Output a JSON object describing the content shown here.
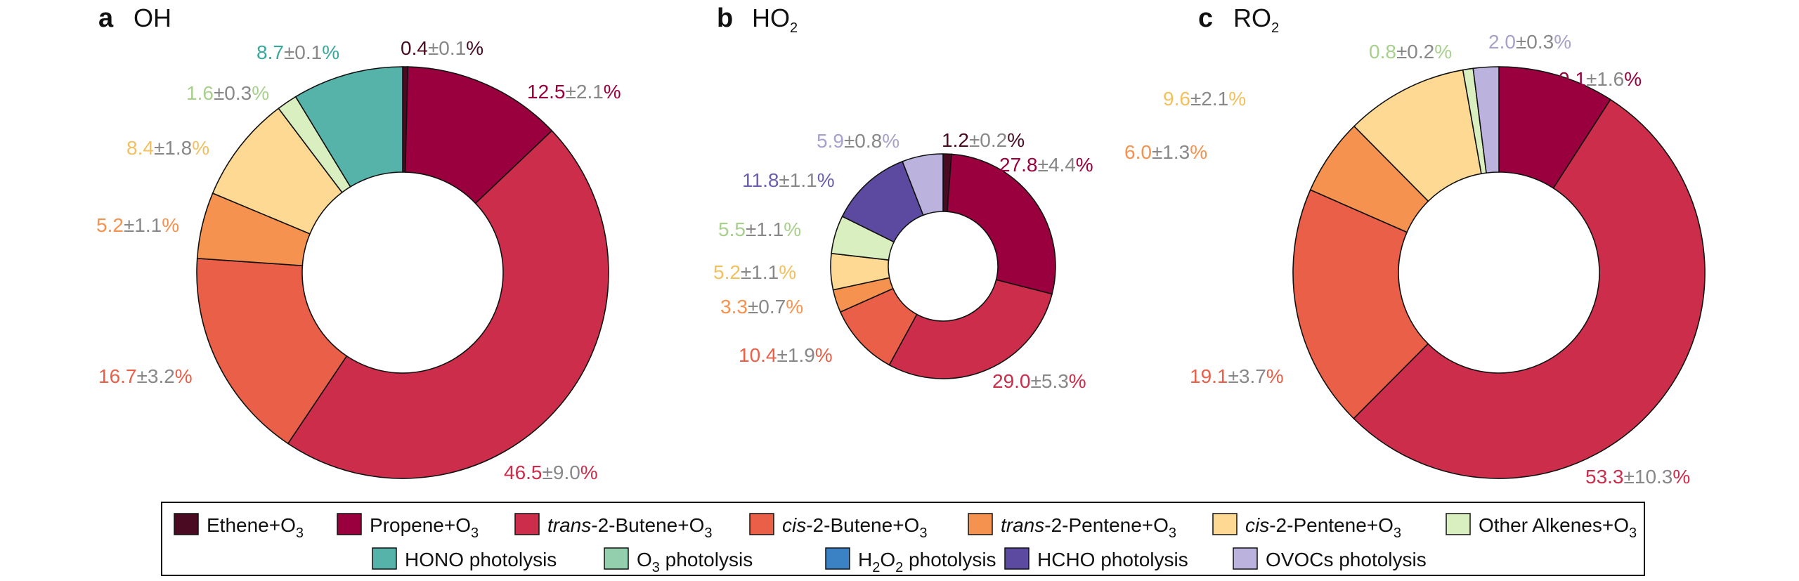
{
  "legend": [
    {
      "key": "ethene",
      "parts": [
        [
          "Ethene+O",
          "n"
        ],
        [
          "3",
          "sub"
        ]
      ],
      "color": "#4a0a22"
    },
    {
      "key": "propene",
      "parts": [
        [
          "Propene+O",
          "n"
        ],
        [
          "3",
          "sub"
        ]
      ],
      "color": "#99003d"
    },
    {
      "key": "trans2butene",
      "parts": [
        [
          "trans",
          "i"
        ],
        [
          "-2-Butene+O",
          "n"
        ],
        [
          "3",
          "sub"
        ]
      ],
      "color": "#cc2d4a"
    },
    {
      "key": "cis2butene",
      "parts": [
        [
          "cis",
          "i"
        ],
        [
          "-2-Butene+O",
          "n"
        ],
        [
          "3",
          "sub"
        ]
      ],
      "color": "#e95f48"
    },
    {
      "key": "trans2pentene",
      "parts": [
        [
          "trans",
          "i"
        ],
        [
          "-2-Pentene+O",
          "n"
        ],
        [
          "3",
          "sub"
        ]
      ],
      "color": "#f5924f"
    },
    {
      "key": "cis2pentene",
      "parts": [
        [
          "cis",
          "i"
        ],
        [
          "-2-Pentene+O",
          "n"
        ],
        [
          "3",
          "sub"
        ]
      ],
      "color": "#fdd993"
    },
    {
      "key": "otheralkenes",
      "parts": [
        [
          "Other Alkenes+O",
          "n"
        ],
        [
          "3",
          "sub"
        ]
      ],
      "color": "#d9efc0"
    },
    {
      "key": "hono",
      "parts": [
        [
          "HONO photolysis",
          "n"
        ]
      ],
      "color": "#56b3aa"
    },
    {
      "key": "o3phot",
      "parts": [
        [
          "O",
          "n"
        ],
        [
          "3",
          "sub"
        ],
        [
          " photolysis",
          "n"
        ]
      ],
      "color": "#93cfac"
    },
    {
      "key": "h2o2phot",
      "parts": [
        [
          "H",
          "n"
        ],
        [
          "2",
          "sub"
        ],
        [
          "O",
          "n"
        ],
        [
          "2",
          "sub"
        ],
        [
          " photolysis",
          "n"
        ]
      ],
      "color": "#3a82c4"
    },
    {
      "key": "hchophot",
      "parts": [
        [
          "HCHO photolysis",
          "n"
        ]
      ],
      "color": "#5b4a9f"
    },
    {
      "key": "ovocsphot",
      "parts": [
        [
          "OVOCs photolysis",
          "n"
        ]
      ],
      "color": "#bbb3dd"
    }
  ],
  "colors": {
    "ethene": "#4a0a22",
    "propene": "#99003d",
    "trans2butene": "#cc2d4a",
    "cis2butene": "#e95f48",
    "trans2pentene": "#f5924f",
    "cis2pentene": "#fdd993",
    "otheralkenes": "#d9efc0",
    "hono": "#56b3aa",
    "o3phot": "#93cfac",
    "h2o2phot": "#3a82c4",
    "hchophot": "#5b4a9f",
    "ovocsphot": "#bbb3dd",
    "label_ethene": "#4a0a22",
    "label_propene": "#99003d",
    "label_trans2butene": "#cc2d4a",
    "label_cis2butene": "#e95f48",
    "label_trans2pentene": "#f5924f",
    "label_cis2pentene": "#f3c060",
    "label_otheralkenes": "#a8d08d",
    "label_hono": "#3aa79d",
    "label_hchophot": "#6a5fb0",
    "label_ovocsphot": "#a7a1cc",
    "uncertainty": "#888888"
  },
  "chart_data": [
    {
      "type": "pie",
      "panel": "a",
      "title": "OH",
      "title_parts": [
        [
          "OH",
          "n"
        ]
      ],
      "slices": [
        {
          "key": "ethene",
          "value": 0.4,
          "label": "0.4",
          "uncertainty": "±0.1%"
        },
        {
          "key": "propene",
          "value": 12.5,
          "label": "12.5",
          "uncertainty": "±2.1%"
        },
        {
          "key": "trans2butene",
          "value": 46.5,
          "label": "46.5",
          "uncertainty": "±9.0%"
        },
        {
          "key": "cis2butene",
          "value": 16.7,
          "label": "16.7",
          "uncertainty": "±3.2%"
        },
        {
          "key": "trans2pentene",
          "value": 5.2,
          "label": "5.2",
          "uncertainty": "±1.1%"
        },
        {
          "key": "cis2pentene",
          "value": 8.4,
          "label": "8.4",
          "uncertainty": "±1.8%"
        },
        {
          "key": "otheralkenes",
          "value": 1.6,
          "label": "1.6",
          "uncertainty": "±0.3%"
        },
        {
          "key": "hono",
          "value": 8.7,
          "label": "8.7",
          "uncertainty": "±0.1%"
        }
      ]
    },
    {
      "type": "pie",
      "panel": "b",
      "title": "HO2",
      "title_parts": [
        [
          "HO",
          "n"
        ],
        [
          "2",
          "sub"
        ]
      ],
      "slices": [
        {
          "key": "ethene",
          "value": 1.2,
          "label": "1.2",
          "uncertainty": "±0.2%"
        },
        {
          "key": "propene",
          "value": 27.8,
          "label": "27.8",
          "uncertainty": "±4.4%"
        },
        {
          "key": "trans2butene",
          "value": 29.0,
          "label": "29.0",
          "uncertainty": "±5.3%"
        },
        {
          "key": "cis2butene",
          "value": 10.4,
          "label": "10.4",
          "uncertainty": "±1.9%"
        },
        {
          "key": "trans2pentene",
          "value": 3.3,
          "label": "3.3",
          "uncertainty": "±0.7%"
        },
        {
          "key": "cis2pentene",
          "value": 5.2,
          "label": "5.2",
          "uncertainty": "±1.1%"
        },
        {
          "key": "otheralkenes",
          "value": 5.5,
          "label": "5.5",
          "uncertainty": "±1.1%"
        },
        {
          "key": "hchophot",
          "value": 11.8,
          "label": "11.8",
          "uncertainty": "±1.1%"
        },
        {
          "key": "ovocsphot",
          "value": 5.9,
          "label": "5.9",
          "uncertainty": "±0.8%"
        }
      ]
    },
    {
      "type": "pie",
      "panel": "c",
      "title": "RO2",
      "title_parts": [
        [
          "RO",
          "n"
        ],
        [
          "2",
          "sub"
        ]
      ],
      "slices": [
        {
          "key": "propene",
          "value": 9.1,
          "label": "9.1",
          "uncertainty": "±1.6%"
        },
        {
          "key": "trans2butene",
          "value": 53.3,
          "label": "53.3",
          "uncertainty": "±10.3%"
        },
        {
          "key": "cis2butene",
          "value": 19.1,
          "label": "19.1",
          "uncertainty": "±3.7%"
        },
        {
          "key": "trans2pentene",
          "value": 6.0,
          "label": "6.0",
          "uncertainty": "±1.3%"
        },
        {
          "key": "cis2pentene",
          "value": 9.6,
          "label": "9.6",
          "uncertainty": "±2.1%"
        },
        {
          "key": "otheralkenes",
          "value": 0.8,
          "label": "0.8",
          "uncertainty": "±0.2%"
        },
        {
          "key": "ovocsphot",
          "value": 2.0,
          "label": "2.0",
          "uncertainty": "±0.3%"
        }
      ]
    }
  ]
}
